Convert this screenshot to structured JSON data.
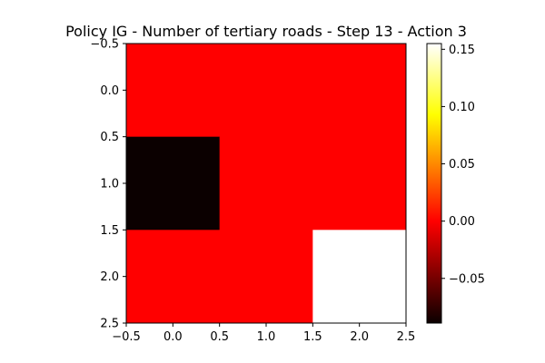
{
  "chart_data": {
    "type": "heatmap",
    "title": "Policy IG - Number of tertiary roads - Step 13 - Action 3",
    "xlabel": "",
    "ylabel": "",
    "xlim": [
      -0.5,
      2.5
    ],
    "ylim": [
      2.5,
      -0.5
    ],
    "x_ticks": [
      "−0.5",
      "0.0",
      "0.5",
      "1.0",
      "1.5",
      "2.0",
      "2.5"
    ],
    "y_ticks": [
      "−0.5",
      "0.0",
      "0.5",
      "1.0",
      "1.5",
      "2.0",
      "2.5"
    ],
    "rows": [
      0,
      1,
      2
    ],
    "cols": [
      0,
      1,
      2
    ],
    "values": [
      [
        0.0,
        0.0,
        0.0
      ],
      [
        -0.089,
        0.0,
        0.0
      ],
      [
        0.0,
        0.0,
        0.155
      ]
    ],
    "colormap": "hot",
    "vmin": -0.089,
    "vmax": 0.155,
    "colorbar_ticks": [
      0.15,
      0.1,
      0.05,
      0.0,
      -0.05
    ],
    "colorbar_tick_labels": [
      "0.15",
      "0.10",
      "0.05",
      "0.00",
      "−0.05"
    ]
  }
}
